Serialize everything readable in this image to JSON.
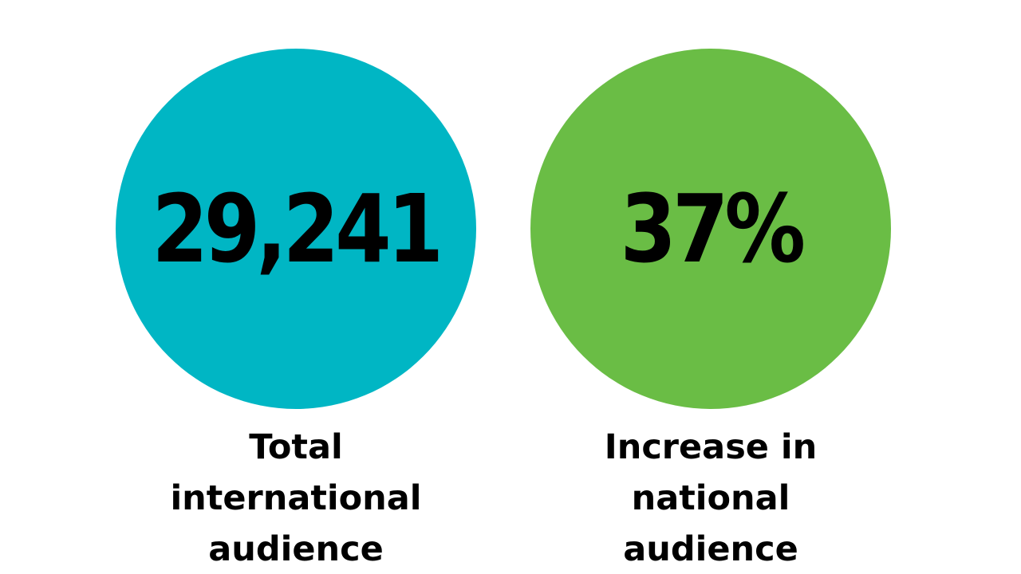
{
  "stats": [
    {
      "value": "29,241",
      "label_lines": [
        "Total",
        "international",
        "audience"
      ],
      "color": "#00B6C4"
    },
    {
      "value": "37%",
      "label_lines": [
        "Increase in",
        "national",
        "audience"
      ],
      "color": "#6ABD45"
    }
  ]
}
